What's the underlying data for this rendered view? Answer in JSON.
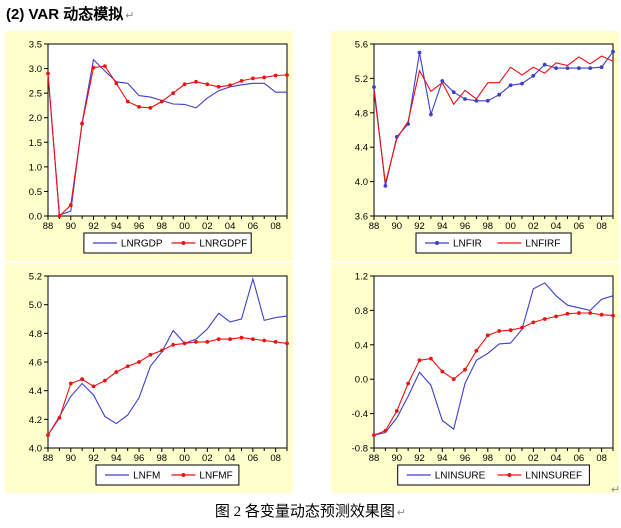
{
  "page": {
    "title": "(2) VAR 动态模拟",
    "caption": "图 2 各变量动态预测效果图",
    "pilcrow": "↵"
  },
  "colors": {
    "panel_bg": "#FFFFCC",
    "plot_bg": "#FFFFFF",
    "axis": "#000000",
    "blue": "#3E3ECC",
    "red": "#EE1111"
  },
  "chart_data": [
    {
      "type": "line",
      "position": "top-left",
      "x_tick_labels": [
        "88",
        "90",
        "92",
        "94",
        "96",
        "98",
        "00",
        "02",
        "04",
        "06",
        "08"
      ],
      "n_points": 22,
      "ylim": [
        0.0,
        3.5
      ],
      "yticks": [
        "3.5",
        "3.0",
        "2.5",
        "2.0",
        "1.5",
        "1.0",
        "0.5",
        "0.0"
      ],
      "grid": false,
      "legend_position": "bottom",
      "series": [
        {
          "name": "LNRGDP",
          "color": "blue",
          "marker": false,
          "values": [
            2.9,
            0.02,
            0.1,
            1.9,
            3.18,
            2.95,
            2.73,
            2.7,
            2.45,
            2.42,
            2.35,
            2.28,
            2.27,
            2.2,
            2.4,
            2.55,
            2.63,
            2.67,
            2.7,
            2.7,
            2.52,
            2.52
          ]
        },
        {
          "name": "LNRGDPF",
          "color": "red",
          "marker": true,
          "values": [
            2.9,
            0.0,
            0.22,
            1.88,
            3.02,
            3.05,
            2.7,
            2.33,
            2.22,
            2.2,
            2.33,
            2.5,
            2.68,
            2.73,
            2.68,
            2.63,
            2.66,
            2.75,
            2.8,
            2.82,
            2.86,
            2.87
          ]
        }
      ]
    },
    {
      "type": "line",
      "position": "top-right",
      "x_tick_labels": [
        "88",
        "90",
        "92",
        "94",
        "96",
        "98",
        "00",
        "02",
        "04",
        "06",
        "08"
      ],
      "n_points": 22,
      "ylim": [
        3.6,
        5.6
      ],
      "yticks": [
        "5.6",
        "5.2",
        "4.8",
        "4.4",
        "4.0",
        "3.6"
      ],
      "grid": false,
      "legend_position": "bottom",
      "series": [
        {
          "name": "LNFIR",
          "color": "blue",
          "marker": true,
          "values": [
            5.1,
            3.95,
            4.52,
            4.67,
            5.5,
            4.78,
            5.17,
            5.04,
            4.96,
            4.94,
            4.94,
            5.01,
            5.12,
            5.14,
            5.23,
            5.36,
            5.32,
            5.32,
            5.32,
            5.32,
            5.33,
            5.51
          ]
        },
        {
          "name": "LNFIRF",
          "color": "red",
          "marker": false,
          "values": [
            5.05,
            3.98,
            4.5,
            4.7,
            5.29,
            5.05,
            5.15,
            4.9,
            5.06,
            4.96,
            5.15,
            5.15,
            5.33,
            5.24,
            5.33,
            5.26,
            5.38,
            5.35,
            5.45,
            5.37,
            5.46,
            5.4
          ]
        }
      ]
    },
    {
      "type": "line",
      "position": "bottom-left",
      "x_tick_labels": [
        "88",
        "90",
        "92",
        "94",
        "96",
        "98",
        "00",
        "02",
        "04",
        "06",
        "08"
      ],
      "n_points": 22,
      "ylim": [
        4.0,
        5.2
      ],
      "yticks": [
        "5.2",
        "5.0",
        "4.8",
        "4.6",
        "4.4",
        "4.2",
        "4.0"
      ],
      "grid": false,
      "legend_position": "bottom",
      "series": [
        {
          "name": "LNFM",
          "color": "blue",
          "marker": false,
          "values": [
            4.09,
            4.22,
            4.36,
            4.45,
            4.37,
            4.22,
            4.17,
            4.23,
            4.35,
            4.57,
            4.67,
            4.82,
            4.73,
            4.76,
            4.83,
            4.94,
            4.88,
            4.9,
            5.18,
            4.89,
            4.91,
            4.92
          ]
        },
        {
          "name": "LNFMF",
          "color": "red",
          "marker": true,
          "values": [
            4.09,
            4.21,
            4.45,
            4.48,
            4.43,
            4.47,
            4.53,
            4.57,
            4.6,
            4.65,
            4.68,
            4.72,
            4.73,
            4.74,
            4.74,
            4.76,
            4.76,
            4.77,
            4.76,
            4.75,
            4.74,
            4.73
          ]
        }
      ]
    },
    {
      "type": "line",
      "position": "bottom-right",
      "x_tick_labels": [
        "88",
        "90",
        "92",
        "94",
        "96",
        "98",
        "00",
        "02",
        "04",
        "06",
        "08"
      ],
      "n_points": 22,
      "ylim": [
        -0.8,
        1.2
      ],
      "yticks": [
        "1.2",
        "0.8",
        "0.4",
        "0.0",
        "-0.4",
        "-0.8"
      ],
      "grid": false,
      "legend_position": "bottom",
      "series": [
        {
          "name": "LNINSURE",
          "color": "blue",
          "marker": false,
          "values": [
            -0.65,
            -0.62,
            -0.45,
            -0.2,
            0.08,
            -0.07,
            -0.48,
            -0.58,
            -0.05,
            0.22,
            0.3,
            0.41,
            0.42,
            0.58,
            1.05,
            1.12,
            0.97,
            0.86,
            0.83,
            0.8,
            0.93,
            0.97
          ]
        },
        {
          "name": "LNINSUREF",
          "color": "red",
          "marker": true,
          "values": [
            -0.65,
            -0.6,
            -0.37,
            -0.05,
            0.22,
            0.24,
            0.09,
            0.0,
            0.11,
            0.33,
            0.51,
            0.56,
            0.57,
            0.6,
            0.66,
            0.7,
            0.73,
            0.76,
            0.77,
            0.77,
            0.75,
            0.74
          ]
        }
      ]
    }
  ]
}
